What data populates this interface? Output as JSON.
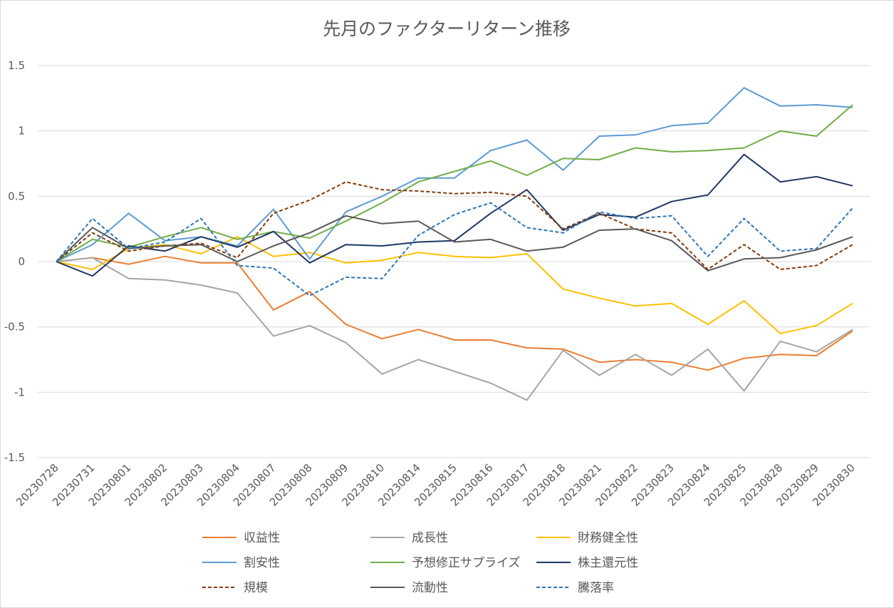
{
  "chart_data": {
    "type": "line",
    "title": "先月のファクターリターン推移",
    "xlabel": "",
    "ylabel": "",
    "ylim": [
      -1.5,
      1.5
    ],
    "yticks": [
      "1.5",
      "1",
      "0.5",
      "0",
      "-0.5",
      "-1",
      "-1.5"
    ],
    "ytick_values": [
      1.5,
      1,
      0.5,
      0,
      -0.5,
      -1,
      -1.5
    ],
    "grid": true,
    "legend_position": "bottom",
    "categories": [
      "20230728",
      "20230731",
      "20230801",
      "20230802",
      "20230803",
      "20230804",
      "20230807",
      "20230808",
      "20230809",
      "20230810",
      "20230814",
      "20230815",
      "20230816",
      "20230817",
      "20230818",
      "20230821",
      "20230822",
      "20230823",
      "20230824",
      "20230825",
      "20230828",
      "20230829",
      "20230830"
    ],
    "series": [
      {
        "name": "収益性",
        "color": "#ed7d31",
        "dash": "solid",
        "values": [
          0,
          0.03,
          -0.02,
          0.04,
          -0.01,
          -0.01,
          -0.37,
          -0.23,
          -0.48,
          -0.59,
          -0.52,
          -0.6,
          -0.6,
          -0.66,
          -0.67,
          -0.77,
          -0.75,
          -0.77,
          -0.83,
          -0.74,
          -0.71,
          -0.72,
          -0.53
        ]
      },
      {
        "name": "成長性",
        "color": "#a5a5a5",
        "dash": "solid",
        "values": [
          0,
          0.03,
          -0.13,
          -0.14,
          -0.18,
          -0.24,
          -0.57,
          -0.49,
          -0.62,
          -0.86,
          -0.75,
          -0.84,
          -0.93,
          -1.06,
          -0.68,
          -0.87,
          -0.71,
          -0.87,
          -0.67,
          -0.99,
          -0.61,
          -0.69,
          -0.52
        ]
      },
      {
        "name": "財務健全性",
        "color": "#ffc000",
        "dash": "solid",
        "values": [
          0,
          -0.06,
          0.1,
          0.13,
          0.06,
          0.19,
          0.04,
          0.07,
          -0.01,
          0.01,
          0.07,
          0.04,
          0.03,
          0.06,
          -0.21,
          -0.28,
          -0.34,
          -0.32,
          -0.48,
          -0.3,
          -0.55,
          -0.49,
          -0.32
        ]
      },
      {
        "name": "割安性",
        "color": "#5b9bd5",
        "dash": "solid",
        "values": [
          0,
          0.13,
          0.37,
          0.16,
          0.19,
          0.12,
          0.4,
          0.02,
          0.38,
          0.5,
          0.64,
          0.64,
          0.85,
          0.93,
          0.7,
          0.96,
          0.97,
          1.04,
          1.06,
          1.33,
          1.19,
          1.2,
          1.18
        ]
      },
      {
        "name": "予想修正サプライズ",
        "color": "#70ad47",
        "dash": "solid",
        "values": [
          0,
          0.17,
          0.11,
          0.19,
          0.26,
          0.17,
          0.23,
          0.18,
          0.31,
          0.45,
          0.61,
          0.69,
          0.77,
          0.66,
          0.79,
          0.78,
          0.87,
          0.84,
          0.85,
          0.87,
          1.0,
          0.96,
          1.2
        ]
      },
      {
        "name": "株主還元性",
        "color": "#203864",
        "dash": "solid",
        "values": [
          0,
          -0.11,
          0.12,
          0.08,
          0.19,
          0.11,
          0.23,
          -0.01,
          0.13,
          0.12,
          0.15,
          0.16,
          0.37,
          0.55,
          0.24,
          0.36,
          0.34,
          0.46,
          0.51,
          0.82,
          0.61,
          0.65,
          0.58
        ]
      },
      {
        "name": "規模",
        "color": "#843c0c",
        "dash": "dashed",
        "values": [
          0,
          0.22,
          0.08,
          0.12,
          0.14,
          0.03,
          0.37,
          0.47,
          0.61,
          0.55,
          0.54,
          0.52,
          0.53,
          0.5,
          0.25,
          0.37,
          0.25,
          0.22,
          -0.06,
          0.13,
          -0.06,
          -0.03,
          0.13
        ]
      },
      {
        "name": "流動性",
        "color": "#595959",
        "dash": "solid",
        "values": [
          0,
          0.26,
          0.1,
          0.12,
          0.13,
          0.0,
          0.12,
          0.22,
          0.35,
          0.29,
          0.31,
          0.15,
          0.17,
          0.08,
          0.11,
          0.24,
          0.25,
          0.16,
          -0.07,
          0.02,
          0.03,
          0.09,
          0.19
        ]
      },
      {
        "name": "騰落率",
        "color": "#2e75b6",
        "dash": "dashed",
        "values": [
          0,
          0.33,
          0.1,
          0.15,
          0.33,
          -0.03,
          -0.05,
          -0.26,
          -0.12,
          -0.13,
          0.2,
          0.36,
          0.45,
          0.26,
          0.22,
          0.38,
          0.33,
          0.35,
          0.04,
          0.33,
          0.08,
          0.1,
          0.41
        ]
      }
    ]
  }
}
